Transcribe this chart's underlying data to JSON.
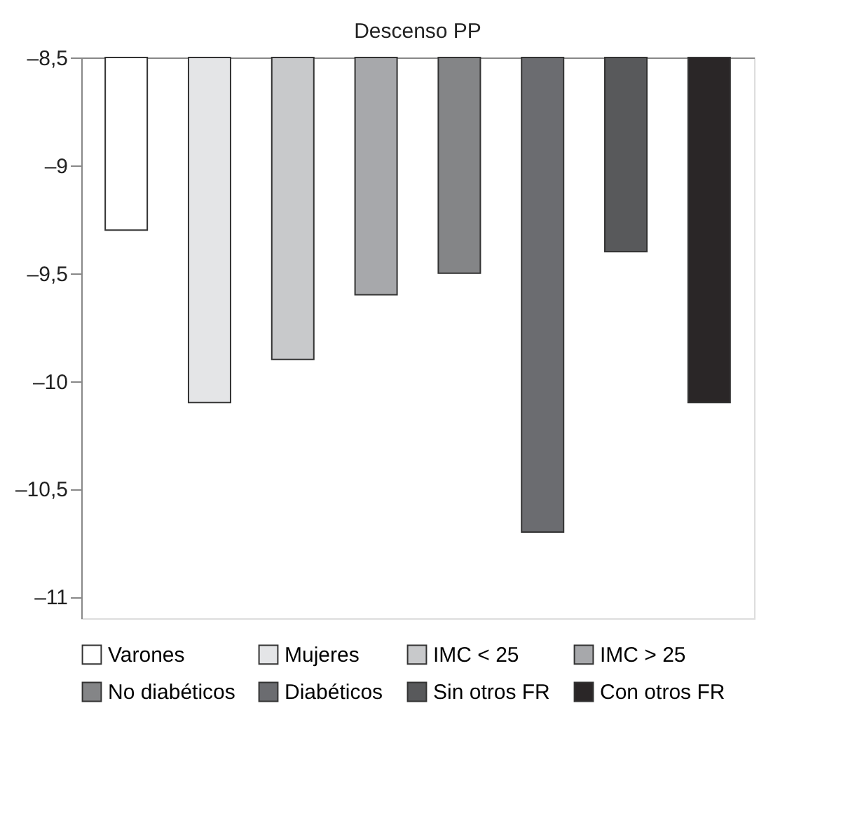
{
  "chart_data": {
    "type": "bar",
    "title": "Descenso PP",
    "categories": [
      null,
      null,
      null,
      null,
      null,
      null,
      null,
      null
    ],
    "series": [
      {
        "name": "Varones",
        "color": "#ffffff",
        "values": [
          -9.3,
          null,
          null,
          null,
          null,
          null,
          null,
          null
        ]
      },
      {
        "name": "Mujeres",
        "color": "#e4e5e7",
        "values": [
          null,
          -10.1,
          null,
          null,
          null,
          null,
          null,
          null
        ]
      },
      {
        "name": "IMC < 25",
        "color": "#c8c9cb",
        "values": [
          null,
          null,
          -9.9,
          null,
          null,
          null,
          null,
          null
        ]
      },
      {
        "name": "IMC > 25",
        "color": "#a7a8ab",
        "values": [
          null,
          null,
          null,
          -9.6,
          null,
          null,
          null,
          null
        ]
      },
      {
        "name": "No diabéticos",
        "color": "#848587",
        "values": [
          null,
          null,
          null,
          null,
          -9.5,
          null,
          null,
          null
        ]
      },
      {
        "name": "Diabéticos",
        "color": "#6b6c70",
        "values": [
          null,
          null,
          null,
          null,
          null,
          -10.7,
          null,
          null
        ]
      },
      {
        "name": "Sin otros FR",
        "color": "#58595b",
        "values": [
          null,
          null,
          null,
          null,
          null,
          null,
          -9.4,
          null
        ]
      },
      {
        "name": "Con otros FR",
        "color": "#2a2627",
        "values": [
          null,
          null,
          null,
          null,
          null,
          null,
          null,
          -10.1
        ]
      }
    ],
    "ylim": [
      -11.1,
      -8.5
    ],
    "yticks": [
      {
        "value": -8.5,
        "label": "–8,5"
      },
      {
        "value": -9,
        "label": "–9"
      },
      {
        "value": -9.5,
        "label": "–9,5"
      },
      {
        "value": -10,
        "label": "–10"
      },
      {
        "value": -10.5,
        "label": "–10,5"
      },
      {
        "value": -11,
        "label": "–11"
      }
    ],
    "legend": "bottom",
    "grid": false,
    "tick_labels": "y"
  }
}
